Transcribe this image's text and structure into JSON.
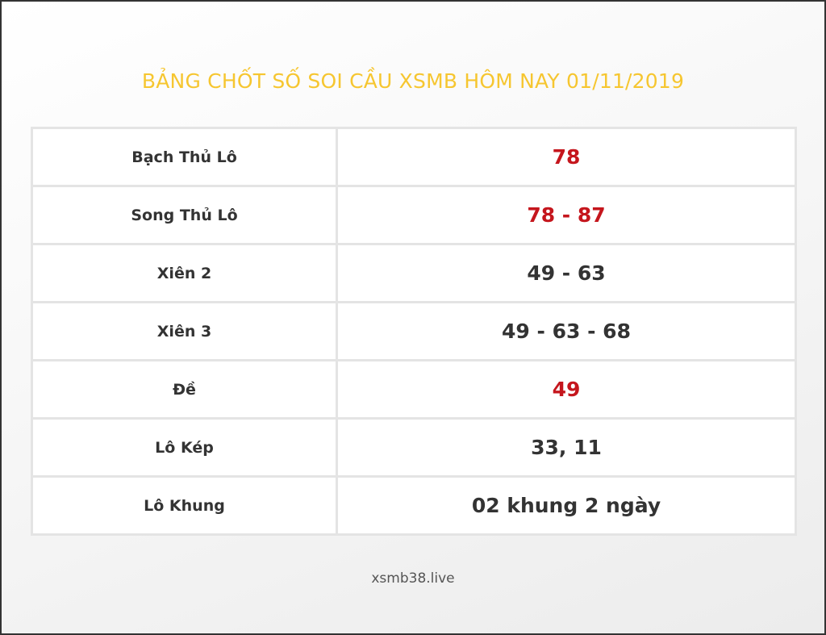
{
  "header": {
    "title": "BẢNG CHỐT SỐ SOI CẦU XSMB HÔM NAY 01/11/2019"
  },
  "table": {
    "rows": [
      [
        "Bạch Thủ Lô",
        "78"
      ],
      [
        "Song Thủ Lô",
        "78 - 87"
      ],
      [
        "Xiên 2",
        "49 - 63"
      ],
      [
        "Xiên 3",
        "49 - 63 - 68"
      ],
      [
        "Đề",
        "49"
      ],
      [
        "Lô Kép",
        "33, 11"
      ],
      [
        "Lô Khung",
        "02 khung 2 ngày"
      ]
    ]
  },
  "footer": {
    "text": "xsmb38.live"
  }
}
